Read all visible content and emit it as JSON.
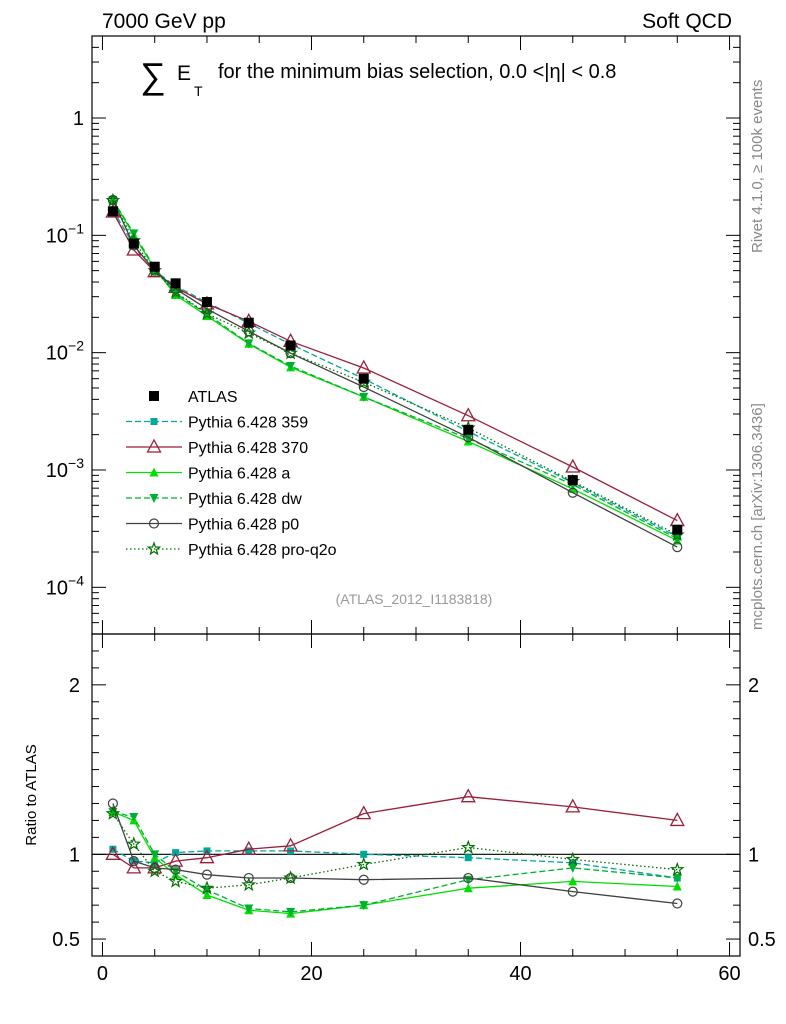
{
  "header": {
    "left": "7000 GeV pp",
    "right": "Soft QCD",
    "title": "for the minimum bias selection, 0.0 <|η| < 0.8",
    "sum_symbol": "∑",
    "sum_e": "E",
    "sum_sub": "T",
    "ref": "(ATLAS_2012_I1183818)",
    "side_top": "Rivet 4.1.0, ≥ 100k events",
    "side_bottom": "mcplots.cern.ch [arXiv:1306.3436]"
  },
  "chart_data": {
    "type": "line",
    "x": [
      1,
      3,
      5,
      7,
      10,
      14,
      18,
      25,
      35,
      45,
      55
    ],
    "main": {
      "yscale": "log",
      "ylim": [
        4e-05,
        5
      ],
      "yticks": [
        {
          "value": 0.0001,
          "base": "10",
          "exp": "−4"
        },
        {
          "value": 0.001,
          "base": "10",
          "exp": "−3"
        },
        {
          "value": 0.01,
          "base": "10",
          "exp": "−2"
        },
        {
          "value": 0.1,
          "base": "10",
          "exp": "−1"
        },
        {
          "value": 1,
          "base": "1",
          "exp": ""
        }
      ]
    },
    "ratio": {
      "ylabel": "Ratio to ATLAS",
      "ylim": [
        0.4,
        2.3
      ],
      "yticks": [
        {
          "value": 0.5,
          "label": "0.5"
        },
        {
          "value": 1,
          "label": "1"
        },
        {
          "value": 2,
          "label": "2"
        }
      ]
    },
    "xlim": [
      -1,
      61
    ],
    "xticks": [
      {
        "value": 0,
        "label": "0"
      },
      {
        "value": 20,
        "label": "20"
      },
      {
        "value": 40,
        "label": "40"
      },
      {
        "value": 60,
        "label": "60"
      }
    ],
    "data": {
      "name": "ATLAS",
      "values": [
        0.16,
        0.085,
        0.054,
        0.039,
        0.027,
        0.018,
        0.0115,
        0.006,
        0.0022,
        0.00082,
        0.00031
      ]
    },
    "series": [
      {
        "name": "Pythia 6.428 359",
        "color": "#00a89a",
        "dash": "6,3",
        "marker": "square",
        "values": [
          0.165,
          0.082,
          0.05,
          0.037,
          0.0268,
          0.0178,
          0.0118,
          0.006,
          0.00213,
          0.00078,
          0.00027
        ],
        "ratio": [
          1.03,
          0.96,
          0.95,
          1.01,
          1.02,
          1.02,
          1.02,
          1.0,
          0.98,
          0.95,
          0.86
        ]
      },
      {
        "name": "Pythia 6.428 370",
        "color": "#9b1f3a",
        "dash": "",
        "marker": "triangle-open",
        "values": [
          0.158,
          0.075,
          0.049,
          0.036,
          0.026,
          0.0185,
          0.0125,
          0.0074,
          0.0029,
          0.00106,
          0.00037
        ],
        "ratio": [
          1.0,
          0.92,
          0.92,
          0.96,
          0.98,
          1.03,
          1.05,
          1.24,
          1.34,
          1.28,
          1.2
        ]
      },
      {
        "name": "Pythia 6.428 a",
        "color": "#00e000",
        "dash": "",
        "marker": "triangle",
        "values": [
          0.2,
          0.1,
          0.052,
          0.031,
          0.0205,
          0.0119,
          0.0075,
          0.0042,
          0.00175,
          0.00069,
          0.00025
        ],
        "ratio": [
          1.25,
          1.2,
          0.98,
          0.88,
          0.76,
          0.67,
          0.65,
          0.7,
          0.8,
          0.84,
          0.81
        ]
      },
      {
        "name": "Pythia 6.428 dw",
        "color": "#00b030",
        "dash": "6,3",
        "marker": "triangle-down",
        "values": [
          0.2,
          0.104,
          0.053,
          0.032,
          0.0213,
          0.012,
          0.0077,
          0.0042,
          0.00185,
          0.00075,
          0.00026
        ],
        "ratio": [
          1.25,
          1.22,
          1.0,
          0.9,
          0.79,
          0.68,
          0.66,
          0.7,
          0.85,
          0.92,
          0.86
        ]
      },
      {
        "name": "Pythia 6.428 p0",
        "color": "#404040",
        "dash": "",
        "marker": "circle-open",
        "values": [
          0.2,
          0.082,
          0.05,
          0.035,
          0.0236,
          0.0152,
          0.0099,
          0.0051,
          0.0019,
          0.00064,
          0.00022
        ],
        "ratio": [
          1.3,
          0.96,
          0.92,
          0.91,
          0.88,
          0.86,
          0.86,
          0.85,
          0.86,
          0.78,
          0.71
        ]
      },
      {
        "name": "Pythia 6.428 pro-q2o",
        "color": "#007000",
        "dash": "1.5,2.5",
        "marker": "star",
        "values": [
          0.198,
          0.09,
          0.05,
          0.0328,
          0.0215,
          0.0147,
          0.0099,
          0.0056,
          0.00228,
          0.0008,
          0.00028
        ],
        "ratio": [
          1.24,
          1.06,
          0.9,
          0.84,
          0.8,
          0.82,
          0.86,
          0.94,
          1.04,
          0.97,
          0.91
        ]
      }
    ]
  }
}
